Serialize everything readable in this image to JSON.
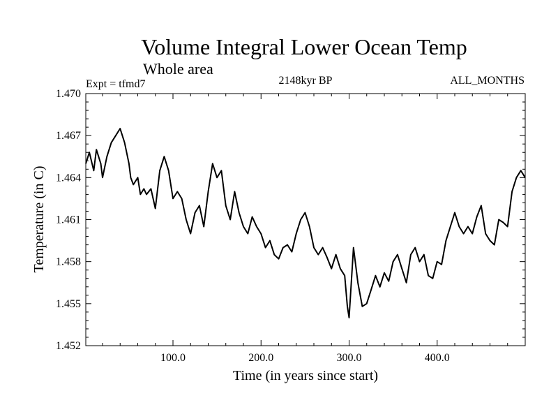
{
  "chart_data": {
    "type": "line",
    "title": "Volume Integral Lower Ocean Temp",
    "subtitle": "Whole area",
    "left_label": "Expt = tfmd7",
    "center_label": "2148kyr BP",
    "right_label": "ALL_MONTHS",
    "xlabel": "Time (in years since start)",
    "ylabel": "Temperature (in C)",
    "xlim": [
      1,
      500
    ],
    "ylim": [
      1.452,
      1.47
    ],
    "xticks": [
      {
        "value": 100,
        "label": "100.0"
      },
      {
        "value": 200,
        "label": "200.0"
      },
      {
        "value": 300,
        "label": "300.0"
      },
      {
        "value": 400,
        "label": "400.0"
      }
    ],
    "yticks": [
      {
        "value": 1.452,
        "label": "1.452"
      },
      {
        "value": 1.455,
        "label": "1.455"
      },
      {
        "value": 1.458,
        "label": "1.458"
      },
      {
        "value": 1.461,
        "label": "1.461"
      },
      {
        "value": 1.464,
        "label": "1.464"
      },
      {
        "value": 1.467,
        "label": "1.467"
      },
      {
        "value": 1.47,
        "label": "1.470"
      }
    ],
    "grid": false,
    "series": [
      {
        "name": "tfmd7",
        "color": "#000000",
        "x": [
          1,
          5,
          10,
          13,
          18,
          20,
          25,
          30,
          35,
          40,
          45,
          50,
          52,
          55,
          60,
          63,
          67,
          70,
          75,
          80,
          85,
          90,
          95,
          100,
          105,
          110,
          115,
          120,
          125,
          130,
          135,
          140,
          145,
          150,
          155,
          160,
          165,
          170,
          175,
          180,
          185,
          190,
          195,
          200,
          205,
          210,
          215,
          220,
          225,
          230,
          235,
          240,
          245,
          250,
          255,
          260,
          265,
          270,
          275,
          280,
          285,
          290,
          295,
          298,
          300,
          305,
          310,
          315,
          320,
          325,
          330,
          335,
          340,
          345,
          350,
          355,
          360,
          365,
          370,
          375,
          380,
          385,
          390,
          395,
          400,
          405,
          410,
          415,
          420,
          425,
          430,
          435,
          440,
          445,
          450,
          455,
          460,
          465,
          470,
          475,
          480,
          485,
          490,
          495,
          500
        ],
        "values": [
          1.465,
          1.4658,
          1.4645,
          1.466,
          1.465,
          1.464,
          1.4655,
          1.4665,
          1.467,
          1.4675,
          1.4665,
          1.465,
          1.464,
          1.4635,
          1.464,
          1.4628,
          1.4632,
          1.4628,
          1.4632,
          1.4618,
          1.4645,
          1.4655,
          1.4645,
          1.4625,
          1.463,
          1.4625,
          1.461,
          1.46,
          1.4615,
          1.462,
          1.4605,
          1.463,
          1.465,
          1.464,
          1.4645,
          1.462,
          1.461,
          1.463,
          1.4615,
          1.4605,
          1.46,
          1.4612,
          1.4605,
          1.46,
          1.459,
          1.4595,
          1.4585,
          1.4582,
          1.459,
          1.4592,
          1.4587,
          1.46,
          1.461,
          1.4615,
          1.4605,
          1.459,
          1.4585,
          1.459,
          1.4583,
          1.4575,
          1.4585,
          1.4575,
          1.457,
          1.4548,
          1.454,
          1.459,
          1.4565,
          1.4548,
          1.455,
          1.456,
          1.457,
          1.4562,
          1.4572,
          1.4566,
          1.458,
          1.4585,
          1.4575,
          1.4565,
          1.4585,
          1.459,
          1.458,
          1.4585,
          1.457,
          1.4568,
          1.458,
          1.4578,
          1.4595,
          1.4605,
          1.4615,
          1.4605,
          1.46,
          1.4605,
          1.46,
          1.4612,
          1.462,
          1.46,
          1.4595,
          1.4592,
          1.461,
          1.4608,
          1.4605,
          1.463,
          1.464,
          1.4645,
          1.464
        ]
      }
    ]
  }
}
